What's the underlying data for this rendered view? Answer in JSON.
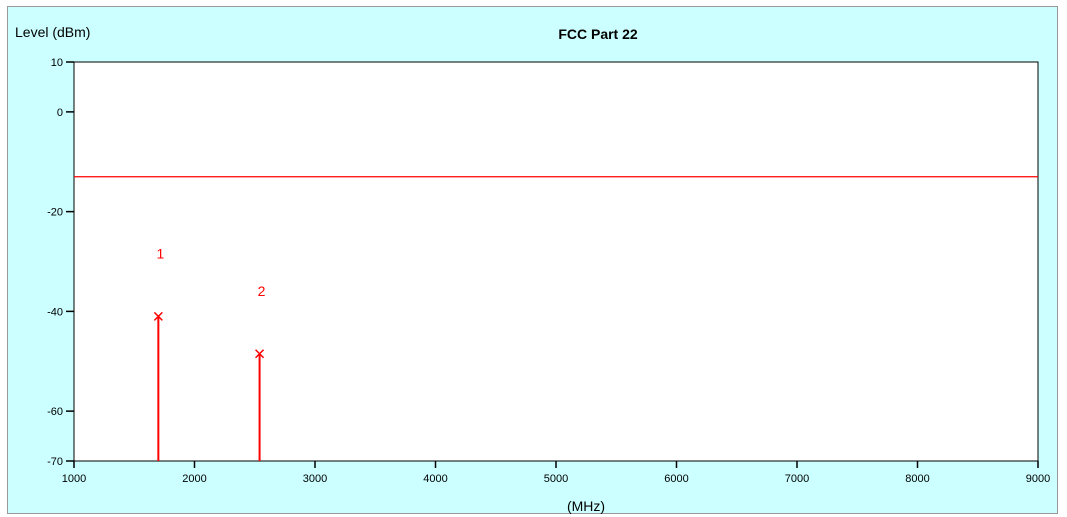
{
  "chart_data": {
    "type": "scatter",
    "title": "FCC  Part 22",
    "ylabel": "Level (dBm)",
    "xlabel": "(MHz)",
    "xlim": [
      1000,
      9000
    ],
    "ylim": [
      -70,
      10
    ],
    "xticks": [
      1000,
      2000,
      3000,
      4000,
      5000,
      6000,
      7000,
      8000,
      9000
    ],
    "yticks": [
      10,
      0,
      -20,
      -40,
      -60,
      -70
    ],
    "limit_line": {
      "y": -13,
      "color": "#ff0000"
    },
    "markers": [
      {
        "label": "1",
        "x": 1700,
        "y": -41
      },
      {
        "label": "2",
        "x": 2540,
        "y": -48.5
      }
    ],
    "grid": false,
    "colors": {
      "background": "#ccffff",
      "plot_area": "#ffffff",
      "signal": "#ff0000",
      "axis": "#000000"
    }
  }
}
